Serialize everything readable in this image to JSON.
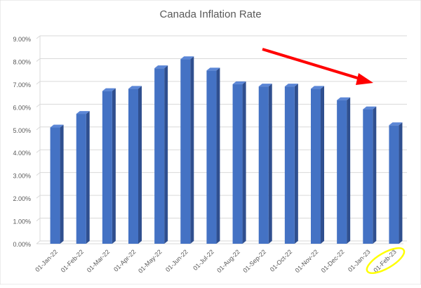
{
  "chart_data": {
    "type": "bar",
    "title": "Canada Inflation Rate",
    "xlabel": "",
    "ylabel": "",
    "categories": [
      "01-Jan-22",
      "01-Feb-22",
      "01-Mar-22",
      "01-Apr-22",
      "01-May-22",
      "01-Jun-22",
      "01-Jul-22",
      "01-Aug-22",
      "01-Sep-22",
      "01-Oct-22",
      "01-Nov-22",
      "01-Dec-22",
      "01-Jan-23",
      "01-Feb-23"
    ],
    "values": [
      5.1,
      5.7,
      6.7,
      6.8,
      7.7,
      8.1,
      7.6,
      7.0,
      6.9,
      6.9,
      6.8,
      6.3,
      5.9,
      5.2
    ],
    "ylim": [
      0,
      9
    ],
    "yticks": [
      "0.00%",
      "1.00%",
      "2.00%",
      "3.00%",
      "4.00%",
      "5.00%",
      "6.00%",
      "7.00%",
      "8.00%",
      "9.00%"
    ],
    "grid": true,
    "legend": "none",
    "colors": {
      "bar_front": "#4472C4",
      "bar_side": "#2F4F8F",
      "bar_top": "#5B86D6",
      "grid": "#D9D9D9",
      "text": "#595959",
      "arrow": "#FF0000",
      "highlight": "#FFFF00"
    },
    "annotations": {
      "trend_arrow": "red-downward-arrow",
      "highlighted_category": "01-Feb-23"
    }
  }
}
